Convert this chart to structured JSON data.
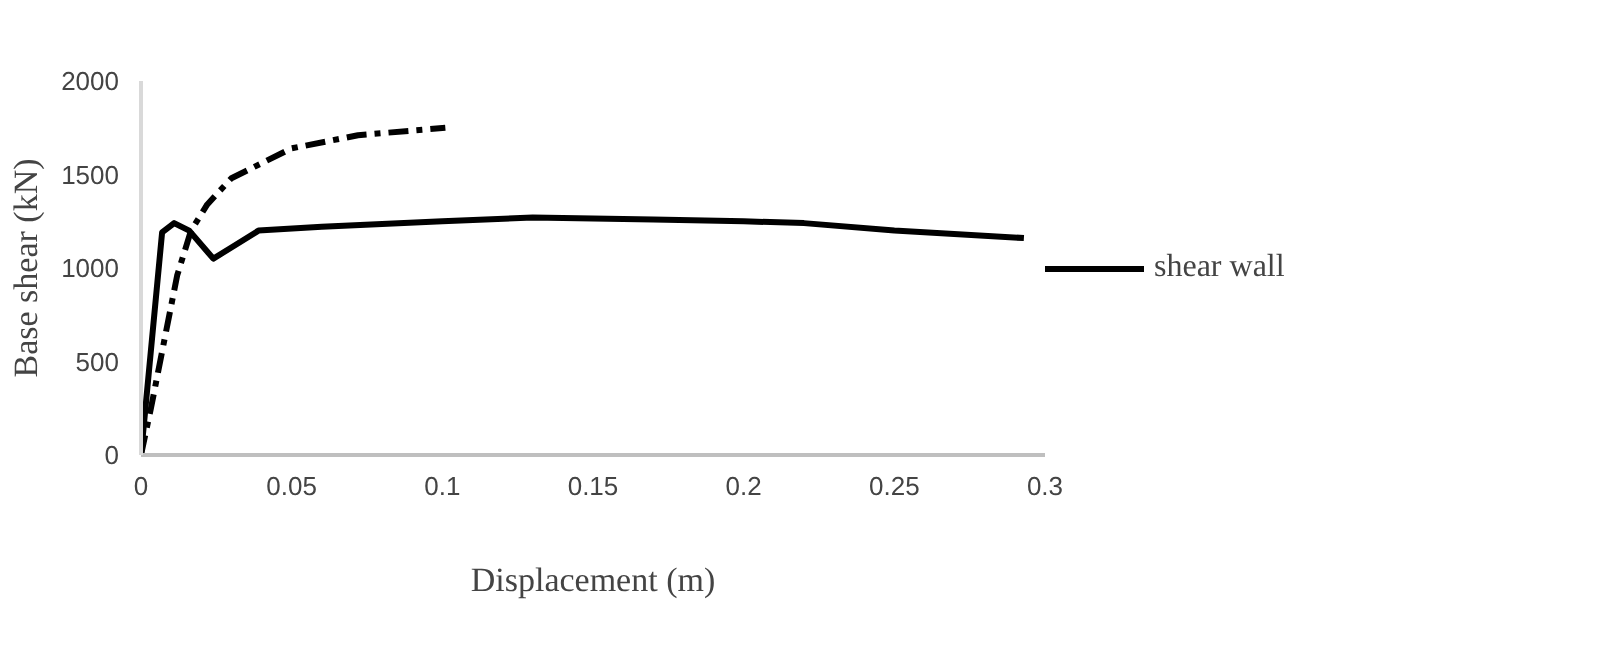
{
  "chart_data": {
    "type": "line",
    "xlabel": "Displacement (m)",
    "ylabel": "Base shear (kN)",
    "xlim": [
      0,
      0.3
    ],
    "xticks": [
      0,
      0.05,
      0.1,
      0.15,
      0.2,
      0.25,
      0.3
    ],
    "ylim": [
      0,
      2000
    ],
    "yticks": [
      0,
      500,
      1000,
      1500,
      2000
    ],
    "grid": false,
    "legend": "right",
    "marker": "none",
    "series": [
      {
        "name": "shear wall",
        "color": "#000000",
        "line_style": "solid",
        "x": [
          0,
          0.007,
          0.011,
          0.016,
          0.024,
          0.03,
          0.039,
          0.06,
          0.1,
          0.13,
          0.17,
          0.2,
          0.22,
          0.25,
          0.293
        ],
        "values": [
          0,
          1190,
          1240,
          1200,
          1050,
          1110,
          1200,
          1220,
          1250,
          1270,
          1260,
          1250,
          1240,
          1200,
          1160
        ]
      },
      {
        "color": "#000000",
        "line_style": "dashdot",
        "x": [
          0,
          0.0033,
          0.0077,
          0.012,
          0.0166,
          0.022,
          0.03,
          0.05,
          0.072,
          0.101
        ],
        "values": [
          0,
          250,
          610,
          960,
          1200,
          1340,
          1480,
          1640,
          1710,
          1750
        ]
      }
    ]
  }
}
